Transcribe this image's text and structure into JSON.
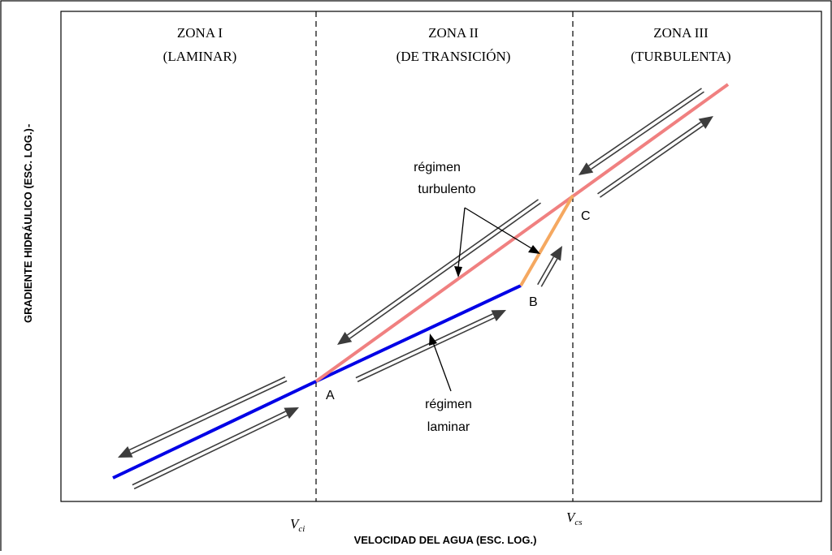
{
  "figure": {
    "zones": [
      {
        "name": "ZONA I",
        "type": "(LAMINAR)"
      },
      {
        "name": "ZONA II",
        "type": "(DE TRANSICIÓN)"
      },
      {
        "name": "ZONA III",
        "type": "(TURBULENTA)"
      }
    ],
    "y_axis_label": "GRADIENTE HIDRÁULICO (ESC. LOG.)",
    "y_axis_suffix": "-",
    "x_axis_label": "VELOCIDAD DEL AGUA (ESC. LOG.)",
    "velocity_marks": [
      {
        "symbol": "V",
        "subscript": "ci"
      },
      {
        "symbol": "V",
        "subscript": "cs"
      }
    ],
    "points": {
      "A": "A",
      "B": "B",
      "C": "C"
    },
    "annotations": {
      "turbulent_line1": "régimen",
      "turbulent_line2": "turbulento",
      "laminar_line1": "régimen",
      "laminar_line2": "laminar"
    },
    "colors": {
      "laminar": "#0000e6",
      "turbulent": "#f08080",
      "transition": "#f5a860",
      "arrow": "#3c3c3c"
    }
  }
}
